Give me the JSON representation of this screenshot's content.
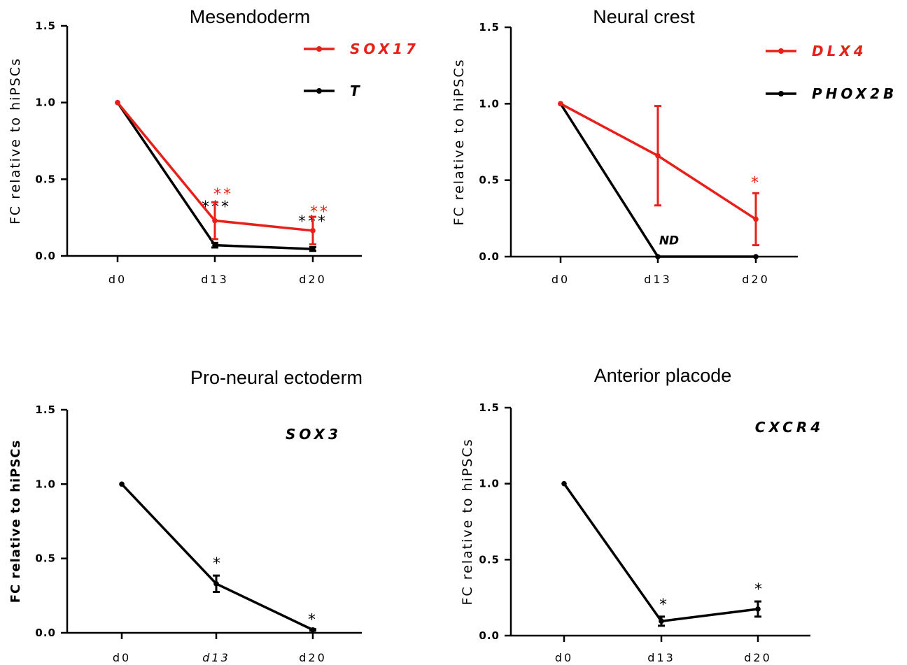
{
  "chart_data": [
    {
      "type": "line",
      "title": "Mesendoderm",
      "ylabel": "FC relative to hiPSCs",
      "ylabel_style": "normal",
      "categories": [
        "d0",
        "d13",
        "d20"
      ],
      "ylim": [
        0,
        1.5
      ],
      "yticks": [
        "0.0",
        "0.5",
        "1.0",
        "1.5"
      ],
      "legend_position": "top-right",
      "series": [
        {
          "name": "SOX17",
          "color": "#e8201a",
          "values": [
            1.0,
            0.23,
            0.165
          ],
          "errors": [
            0,
            0.12,
            0.09
          ],
          "annotations": [
            null,
            "**",
            "**"
          ]
        },
        {
          "name": "T",
          "color": "#000000",
          "values": [
            1.0,
            0.07,
            0.045
          ],
          "errors": [
            0,
            0.015,
            0.012
          ],
          "annotations": [
            null,
            "***",
            "***"
          ]
        }
      ],
      "labels": []
    },
    {
      "type": "line",
      "title": "Neural crest",
      "ylabel": "FC relative to hiPSCs",
      "ylabel_style": "normal",
      "categories": [
        "d0",
        "d13",
        "d20"
      ],
      "ylim": [
        0,
        1.5
      ],
      "yticks": [
        "0.0",
        "0.5",
        "1.0",
        "1.5"
      ],
      "legend_position": "top-right",
      "series": [
        {
          "name": "DLX4",
          "color": "#e8201a",
          "values": [
            1.0,
            0.66,
            0.245
          ],
          "errors": [
            0,
            0.325,
            0.17
          ],
          "annotations": [
            null,
            null,
            "*"
          ]
        },
        {
          "name": "PHOX2B",
          "color": "#000000",
          "values": [
            1.0,
            0.0,
            0.0
          ],
          "errors": [
            0,
            0,
            0
          ],
          "annotations": [
            null,
            null,
            null
          ]
        }
      ],
      "labels": [
        {
          "text": "ND",
          "x": "d13",
          "y": 0.09
        }
      ]
    },
    {
      "type": "line",
      "title": "Pro-neural ectoderm",
      "ylabel": "FC relative to hiPSCs",
      "ylabel_style": "bold",
      "categories": [
        "d0",
        "d13",
        "d20"
      ],
      "ylim": [
        0,
        1.5
      ],
      "yticks": [
        "0.0",
        "0.5",
        "1.0",
        "1.5"
      ],
      "legend_position": "top-right",
      "series": [
        {
          "name": "SOX3",
          "color": "#000000",
          "values": [
            1.0,
            0.33,
            0.02
          ],
          "errors": [
            0,
            0.055,
            0.005
          ],
          "annotations": [
            null,
            "*",
            "*"
          ]
        }
      ],
      "labels": []
    },
    {
      "type": "line",
      "title": "Anterior placode",
      "ylabel": "FC relative to hiPSCs",
      "ylabel_style": "normal",
      "categories": [
        "d0",
        "d13",
        "d20"
      ],
      "ylim": [
        0,
        1.5
      ],
      "yticks": [
        "0.0",
        "0.5",
        "1.0",
        "1.5"
      ],
      "legend_position": "top-right",
      "series": [
        {
          "name": "CXCR4",
          "color": "#000000",
          "values": [
            1.0,
            0.095,
            0.175
          ],
          "errors": [
            0,
            0.03,
            0.05
          ],
          "annotations": [
            null,
            "*",
            "*"
          ]
        }
      ],
      "labels": []
    }
  ]
}
